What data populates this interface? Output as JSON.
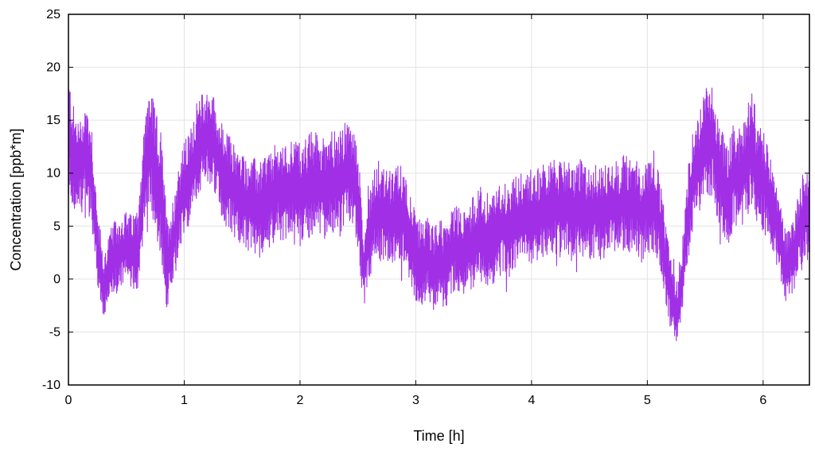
{
  "chart_data": {
    "type": "line",
    "title": "",
    "xlabel": "Time [h]",
    "ylabel": "Concentration [ppb*m]",
    "xlim": [
      0,
      6.4
    ],
    "ylim": [
      -10,
      25
    ],
    "xticks": [
      0,
      1,
      2,
      3,
      4,
      5,
      6
    ],
    "yticks": [
      -10,
      -5,
      0,
      5,
      10,
      15,
      20,
      25
    ],
    "grid": true,
    "legend": "none",
    "colors": {
      "series": "#a02fe6",
      "grid": "#e3e3e3",
      "frame": "#000000"
    },
    "series": [
      {
        "x": [
          0.0,
          0.05,
          0.1,
          0.15,
          0.2,
          0.25,
          0.3,
          0.35,
          0.4,
          0.45,
          0.5,
          0.55,
          0.6,
          0.65,
          0.7,
          0.75,
          0.8,
          0.85,
          0.9,
          0.95,
          1.0,
          1.05,
          1.1,
          1.15,
          1.2,
          1.25,
          1.3,
          1.35,
          1.4,
          1.45,
          1.5,
          1.55,
          1.6,
          1.65,
          1.7,
          1.75,
          1.8,
          1.85,
          1.9,
          1.95,
          2.0,
          2.05,
          2.1,
          2.15,
          2.2,
          2.25,
          2.3,
          2.35,
          2.4,
          2.45,
          2.5,
          2.55,
          2.6,
          2.65,
          2.7,
          2.75,
          2.8,
          2.85,
          2.9,
          2.95,
          3.0,
          3.05,
          3.1,
          3.15,
          3.2,
          3.25,
          3.3,
          3.35,
          3.4,
          3.45,
          3.5,
          3.55,
          3.6,
          3.65,
          3.7,
          3.75,
          3.8,
          3.85,
          3.9,
          3.95,
          4.0,
          4.05,
          4.1,
          4.15,
          4.2,
          4.25,
          4.3,
          4.35,
          4.4,
          4.45,
          4.5,
          4.55,
          4.6,
          4.65,
          4.7,
          4.75,
          4.8,
          4.85,
          4.9,
          4.95,
          5.0,
          5.05,
          5.1,
          5.15,
          5.2,
          5.25,
          5.3,
          5.35,
          5.4,
          5.45,
          5.5,
          5.55,
          5.6,
          5.65,
          5.7,
          5.75,
          5.8,
          5.85,
          5.9,
          5.95,
          6.0,
          6.05,
          6.1,
          6.15,
          6.2,
          6.25,
          6.3,
          6.35,
          6.4
        ],
        "y": [
          14.0,
          11.0,
          10.5,
          12.0,
          10.0,
          3.0,
          -1.0,
          1.0,
          2.0,
          2.5,
          3.0,
          2.5,
          3.0,
          9.0,
          13.0,
          10.0,
          8.0,
          1.5,
          3.0,
          6.5,
          8.5,
          9.5,
          12.0,
          13.0,
          13.5,
          13.0,
          11.0,
          9.5,
          9.0,
          8.0,
          7.5,
          7.0,
          7.0,
          6.5,
          7.5,
          7.5,
          8.5,
          8.0,
          8.5,
          9.0,
          8.0,
          8.5,
          9.0,
          9.0,
          8.5,
          9.5,
          9.0,
          9.0,
          10.0,
          9.5,
          8.0,
          0.5,
          4.5,
          6.5,
          6.0,
          6.0,
          5.5,
          6.5,
          6.0,
          4.0,
          2.0,
          1.5,
          2.0,
          1.0,
          2.0,
          1.0,
          2.5,
          3.0,
          2.5,
          3.0,
          3.5,
          4.0,
          3.5,
          4.0,
          4.0,
          5.0,
          4.5,
          5.5,
          5.5,
          6.0,
          6.0,
          6.0,
          6.5,
          6.5,
          7.0,
          6.5,
          7.0,
          6.0,
          7.0,
          6.5,
          6.0,
          6.5,
          6.0,
          6.5,
          7.0,
          6.5,
          7.5,
          7.0,
          7.0,
          6.0,
          7.0,
          7.0,
          6.0,
          2.0,
          -1.5,
          -3.5,
          0.0,
          6.0,
          9.5,
          11.0,
          12.5,
          13.5,
          11.0,
          9.0,
          8.0,
          10.0,
          9.5,
          10.5,
          13.0,
          9.5,
          9.5,
          7.5,
          6.0,
          3.5,
          1.0,
          2.0,
          4.0,
          6.0,
          6.0
        ],
        "spread": [
          5.5,
          5.0,
          4.5,
          5.0,
          5.0,
          3.5,
          3.0,
          3.5,
          3.5,
          3.5,
          3.5,
          3.5,
          4.0,
          5.0,
          5.5,
          6.0,
          6.0,
          4.5,
          4.5,
          4.5,
          4.5,
          4.5,
          4.5,
          4.5,
          4.5,
          4.5,
          4.5,
          4.5,
          4.5,
          4.5,
          4.5,
          4.5,
          4.5,
          4.5,
          4.5,
          4.5,
          4.5,
          4.5,
          4.5,
          4.5,
          5.0,
          5.0,
          5.0,
          5.0,
          5.0,
          5.0,
          5.0,
          5.0,
          5.0,
          5.0,
          5.0,
          3.5,
          4.5,
          4.5,
          4.5,
          4.5,
          4.5,
          4.5,
          4.5,
          4.5,
          4.0,
          4.0,
          4.0,
          4.0,
          4.0,
          4.0,
          4.0,
          4.0,
          4.0,
          4.0,
          4.5,
          4.5,
          4.5,
          4.5,
          4.5,
          4.5,
          4.5,
          4.5,
          4.5,
          4.5,
          4.5,
          4.5,
          4.5,
          4.5,
          4.5,
          4.5,
          4.5,
          4.5,
          4.5,
          4.5,
          4.5,
          4.5,
          4.5,
          4.5,
          4.5,
          4.5,
          4.5,
          4.5,
          4.5,
          4.5,
          4.5,
          4.5,
          4.5,
          4.0,
          3.5,
          3.0,
          3.5,
          4.5,
          5.0,
          5.0,
          5.5,
          5.5,
          5.0,
          5.0,
          5.0,
          5.0,
          5.0,
          5.0,
          6.0,
          5.0,
          5.0,
          4.5,
          4.0,
          3.5,
          3.5,
          3.5,
          4.0,
          4.5,
          4.5
        ]
      }
    ]
  }
}
